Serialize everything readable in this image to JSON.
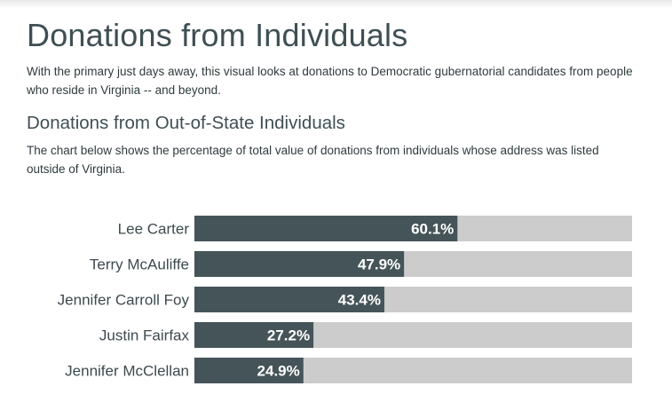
{
  "header": {
    "title": "Donations from Individuals",
    "lede": "With the primary just days away, this visual looks at donations to Democratic gubernatorial candidates from people who reside in Virginia -- and beyond."
  },
  "section": {
    "title": "Donations from Out-of-State Individuals",
    "description": "The chart below shows the percentage of total value of donations from individuals whose address was listed outside of Virginia."
  },
  "colors": {
    "bar": "#455458",
    "track": "#cccccc"
  },
  "chart_data": {
    "type": "bar",
    "orientation": "horizontal",
    "title": "",
    "xlabel": "",
    "ylabel": "",
    "xlim": [
      0,
      100
    ],
    "categories": [
      "Lee Carter",
      "Terry McAuliffe",
      "Jennifer Carroll Foy",
      "Justin Fairfax",
      "Jennifer McClellan"
    ],
    "values": [
      60.1,
      47.9,
      43.4,
      27.2,
      24.9
    ],
    "value_labels": [
      "60.1%",
      "47.9%",
      "43.4%",
      "27.2%",
      "24.9%"
    ],
    "grid": false
  }
}
